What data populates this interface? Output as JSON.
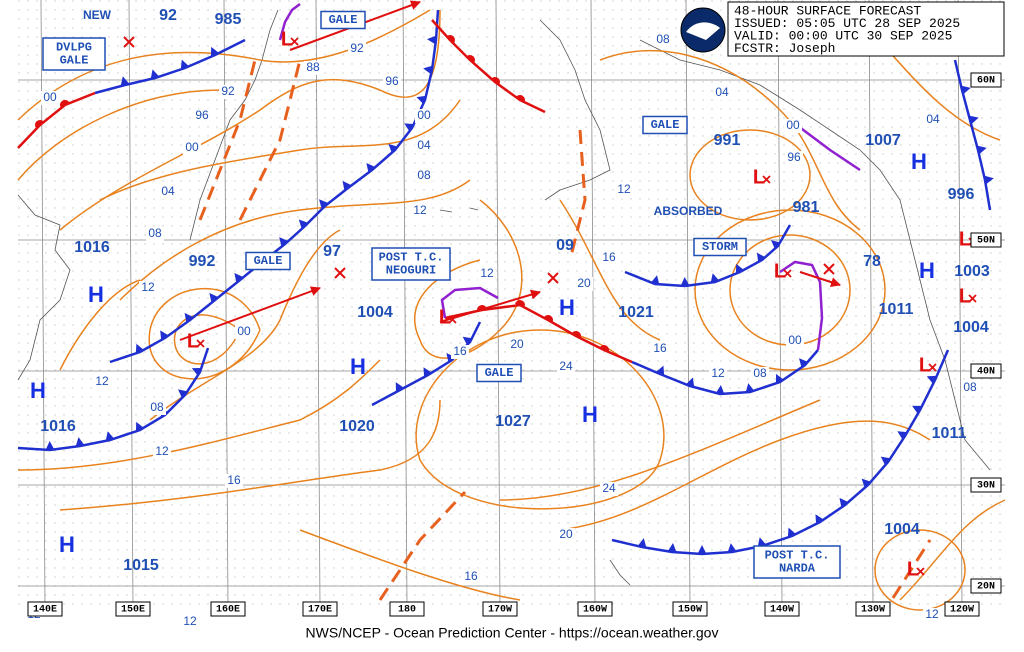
{
  "header": {
    "title": "48-HOUR SURFACE FORECAST",
    "issued": "ISSUED: 05:05 UTC 28 SEP 2025",
    "valid": "VALID:  00:00 UTC 30 SEP 2025",
    "forecaster": "FCSTR:  Joseph"
  },
  "footer": "NWS/NCEP - Ocean Prediction Center - https://ocean.weather.gov",
  "pressures": [
    "92",
    "985",
    "1016",
    "992",
    "97",
    "1004",
    "09",
    "1021",
    "991",
    "981",
    "1007",
    "78",
    "996",
    "1003",
    "1011",
    "1004",
    "1020",
    "1027",
    "1016",
    "1015",
    "1011",
    "1004"
  ],
  "isobar_labels": [
    "00",
    "92",
    "96",
    "00",
    "04",
    "08",
    "12",
    "00",
    "12",
    "08",
    "12",
    "16",
    "88",
    "92",
    "96",
    "00",
    "04",
    "08",
    "12",
    "12",
    "16",
    "20",
    "24",
    "20",
    "16",
    "12",
    "08",
    "04",
    "00",
    "96",
    "16",
    "12",
    "08",
    "00",
    "04",
    "08",
    "24",
    "20",
    "16",
    "12",
    "12",
    "12"
  ],
  "boxes": [
    {
      "lines": [
        "DVLPG",
        "GALE"
      ]
    },
    {
      "lines": [
        "GALE"
      ]
    },
    {
      "lines": [
        "GALE"
      ]
    },
    {
      "lines": [
        "POST T.C.",
        "NEOGURI"
      ]
    },
    {
      "lines": [
        "GALE"
      ]
    },
    {
      "lines": [
        "GALE"
      ]
    },
    {
      "lines": [
        "STORM"
      ]
    },
    {
      "lines": [
        "POST T.C.",
        "NARDA"
      ]
    }
  ],
  "notes": [
    "NEW",
    "ABSORBED"
  ],
  "highs": [
    "H",
    "H",
    "H",
    "H",
    "H",
    "H",
    "H",
    "H"
  ],
  "lows": [
    "L",
    "L",
    "L",
    "L",
    "L",
    "L",
    "L",
    "L",
    "L"
  ],
  "lat_labels": [
    "60N",
    "50N",
    "40N",
    "30N",
    "20N"
  ],
  "lon_labels": [
    "140E",
    "150E",
    "160E",
    "170E",
    "180",
    "170W",
    "160W",
    "150W",
    "140W",
    "130W",
    "120W"
  ]
}
